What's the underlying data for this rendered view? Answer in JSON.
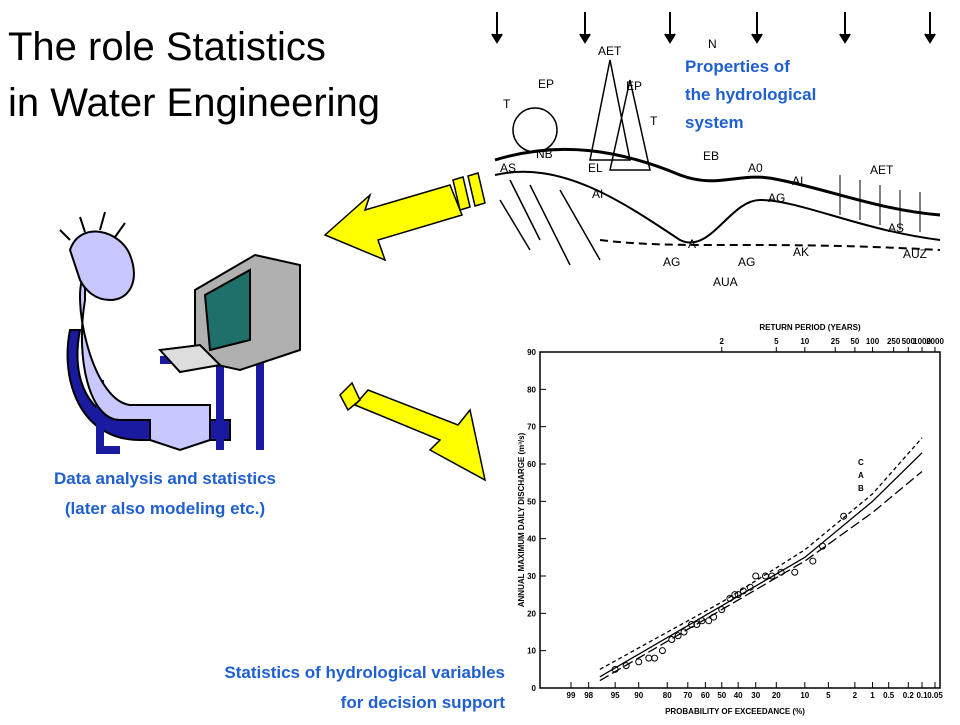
{
  "header": {
    "title_lines": [
      "The role Statistics",
      "in Water Engineering"
    ]
  },
  "hydrology": {
    "caption_lines": [
      "Properties of",
      "the hydrological",
      "system"
    ],
    "labels": [
      "AET",
      "N",
      "EP",
      "EP",
      "T",
      "T",
      "NB",
      "EL",
      "AS",
      "EB",
      "A0",
      "AI",
      "AET",
      "AI",
      "AG",
      "A",
      "AK",
      "AS",
      "AG",
      "AG",
      "AUZ",
      "AUA"
    ]
  },
  "analysis_caption": [
    "Data analysis and statistics",
    "(later also modeling etc.)"
  ],
  "decision_caption": [
    "Statistics of hydrological variables",
    "for decision support"
  ],
  "chart": {
    "type": "scatter",
    "x2_label": "RETURN PERIOD (YEARS)",
    "y_label": "ANNUAL MAXIMUM DAILY DISCHARGE (m³/s)",
    "x_label": "PROBABILITY OF EXCEEDANCE (%)",
    "ylim": [
      0,
      90
    ],
    "yticks": [
      0,
      10,
      20,
      30,
      40,
      50,
      60,
      70,
      80,
      90
    ],
    "xticks": [
      99,
      98,
      95,
      90,
      80,
      70,
      60,
      50,
      40,
      30,
      20,
      10,
      5,
      2,
      1,
      0.5,
      0.2,
      0.1,
      0.05
    ],
    "x2ticks": [
      2,
      5,
      10,
      25,
      50,
      100,
      250,
      500,
      1000,
      2000
    ],
    "points": {
      "x": [
        95,
        93,
        90,
        87,
        85,
        82,
        78,
        75,
        72,
        68,
        65,
        62,
        58,
        55,
        50,
        45,
        42,
        40,
        37,
        33,
        30,
        25,
        22,
        18,
        13,
        8,
        6,
        3
      ],
      "values": [
        5,
        6,
        7,
        8,
        8,
        10,
        13,
        14,
        15,
        17,
        17,
        18,
        18,
        19,
        21,
        24,
        25,
        25,
        26,
        27,
        30,
        30,
        30,
        31,
        31,
        34,
        38,
        46
      ]
    },
    "curves": [
      {
        "name": "C",
        "x": [
          97,
          50,
          10,
          1,
          0.1
        ],
        "values": [
          5,
          23,
          37,
          52,
          67
        ]
      },
      {
        "name": "A",
        "x": [
          97,
          50,
          10,
          1,
          0.1
        ],
        "values": [
          3,
          22,
          35,
          50,
          63
        ]
      },
      {
        "name": "B",
        "x": [
          97,
          50,
          10,
          1,
          0.1
        ],
        "values": [
          2,
          21,
          34,
          47,
          58
        ]
      }
    ]
  }
}
